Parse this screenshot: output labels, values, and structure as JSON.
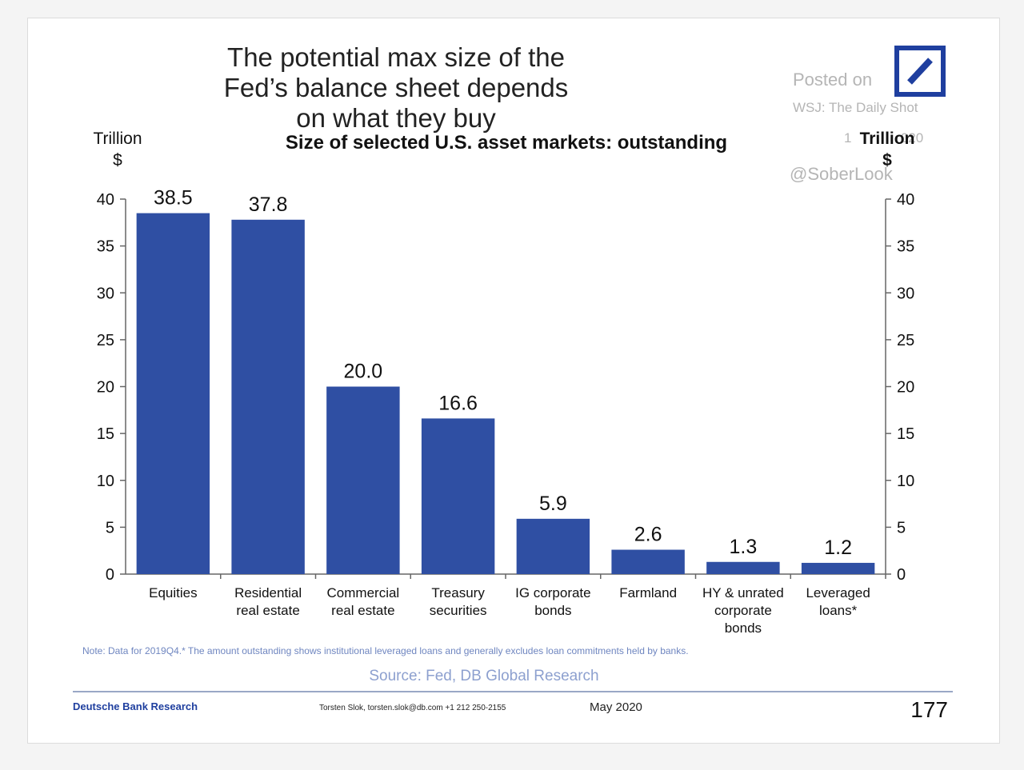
{
  "title": "The potential max size of the Fed’s balance sheet depends on what they buy",
  "watermark": {
    "posted": "Posted on",
    "source": "WSJ: The Daily Shot",
    "date": "1             020",
    "user": "@SoberLook"
  },
  "footer": {
    "note": "Note: Data for 2019Q4.* The amount outstanding shows institutional leveraged loans and generally excludes loan commitments held by banks.",
    "source": "Source: Fed, DB Global Research",
    "brand": "Deutsche Bank Research",
    "contact": "Torsten Slok, torsten.slok@db.com +1 212 250-2155",
    "date": "May 2020",
    "page": "177"
  },
  "colors": {
    "bar": "#2f4fa3",
    "logo": "#1f3f9f",
    "brand_text": "#1f3f9f",
    "note_text": "#2f4fa3"
  },
  "icons": {
    "logo": "deutsche-bank-slash-logo"
  },
  "chart_data": {
    "type": "bar",
    "title": "Size of selected U.S. asset markets: outstanding",
    "ylabel": "Trillion $",
    "ylabel_right": "Trillion $",
    "ylim": [
      0,
      40
    ],
    "yticks": [
      0,
      5,
      10,
      15,
      20,
      25,
      30,
      35,
      40
    ],
    "grid": false,
    "categories": [
      [
        "Equities"
      ],
      [
        "Residential",
        "real estate"
      ],
      [
        "Commercial",
        "real estate"
      ],
      [
        "Treasury",
        "securities"
      ],
      [
        "IG corporate",
        "bonds"
      ],
      [
        "Farmland"
      ],
      [
        "HY & unrated",
        "corporate",
        "bonds"
      ],
      [
        "Leveraged",
        "loans*"
      ]
    ],
    "values": [
      38.5,
      37.8,
      20.0,
      16.6,
      5.9,
      2.6,
      1.3,
      1.2
    ],
    "value_labels": [
      "38.5",
      "37.8",
      "20.0",
      "16.6",
      "5.9",
      "2.6",
      "1.3",
      "1.2"
    ]
  }
}
